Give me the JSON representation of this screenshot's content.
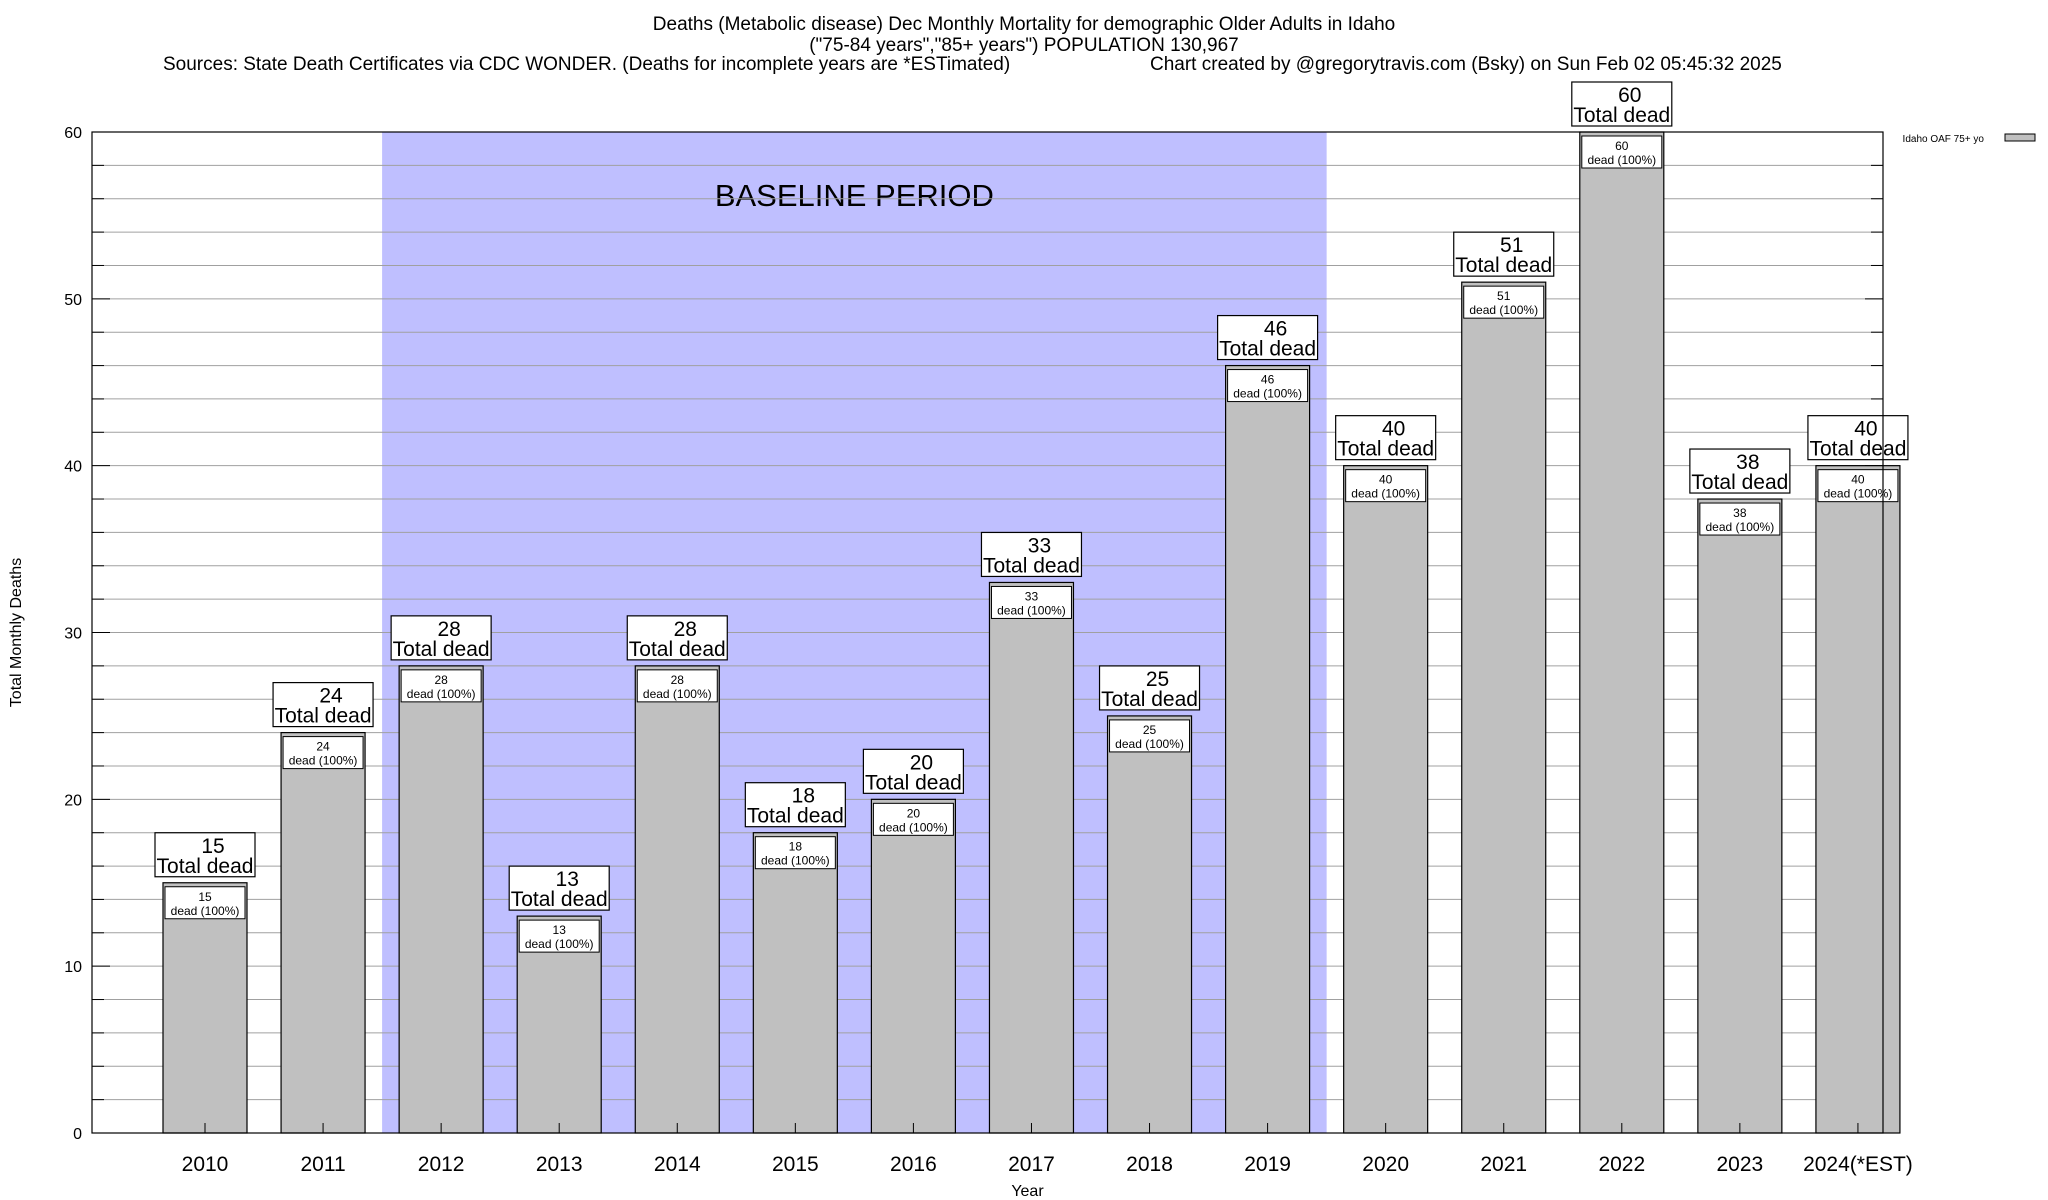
{
  "header": {
    "title_line1": "Deaths (Metabolic disease) Dec Monthly Mortality for demographic Older Adults in Idaho",
    "title_line2": "(\"75-84 years\",\"85+ years\") POPULATION 130,967",
    "sources": "Sources: State Death Certificates via CDC WONDER. (Deaths for incomplete years are *ESTimated)",
    "credit": "Chart created by @gregorytravis.com (Bsky) on Sun Feb 02 05:45:32 2025"
  },
  "colors": {
    "bar": "#c0c0c0",
    "baseline": "#bfbfff",
    "grid": "#a0a0a0"
  },
  "chart_data": {
    "type": "bar",
    "categories": [
      "2010",
      "2011",
      "2012",
      "2013",
      "2014",
      "2015",
      "2016",
      "2017",
      "2018",
      "2019",
      "2020",
      "2021",
      "2022",
      "2023",
      "2024(*EST)"
    ],
    "series": [
      {
        "name": "Idaho OAF 75+ yo",
        "values": [
          15,
          24,
          28,
          13,
          28,
          18,
          20,
          33,
          25,
          46,
          40,
          51,
          60,
          38,
          40
        ]
      }
    ],
    "total_label_word": "Total dead",
    "inner_label_word": "dead (100%)",
    "xlabel": "Year",
    "ylabel": "Total Monthly Deaths",
    "ylim": [
      0,
      60
    ],
    "yticks": [
      0,
      10,
      20,
      30,
      40,
      50,
      60
    ],
    "grid": true,
    "legend": "top-right",
    "baseline_period": {
      "label": "BASELINE PERIOD",
      "start": "2012",
      "end": "2019"
    }
  }
}
